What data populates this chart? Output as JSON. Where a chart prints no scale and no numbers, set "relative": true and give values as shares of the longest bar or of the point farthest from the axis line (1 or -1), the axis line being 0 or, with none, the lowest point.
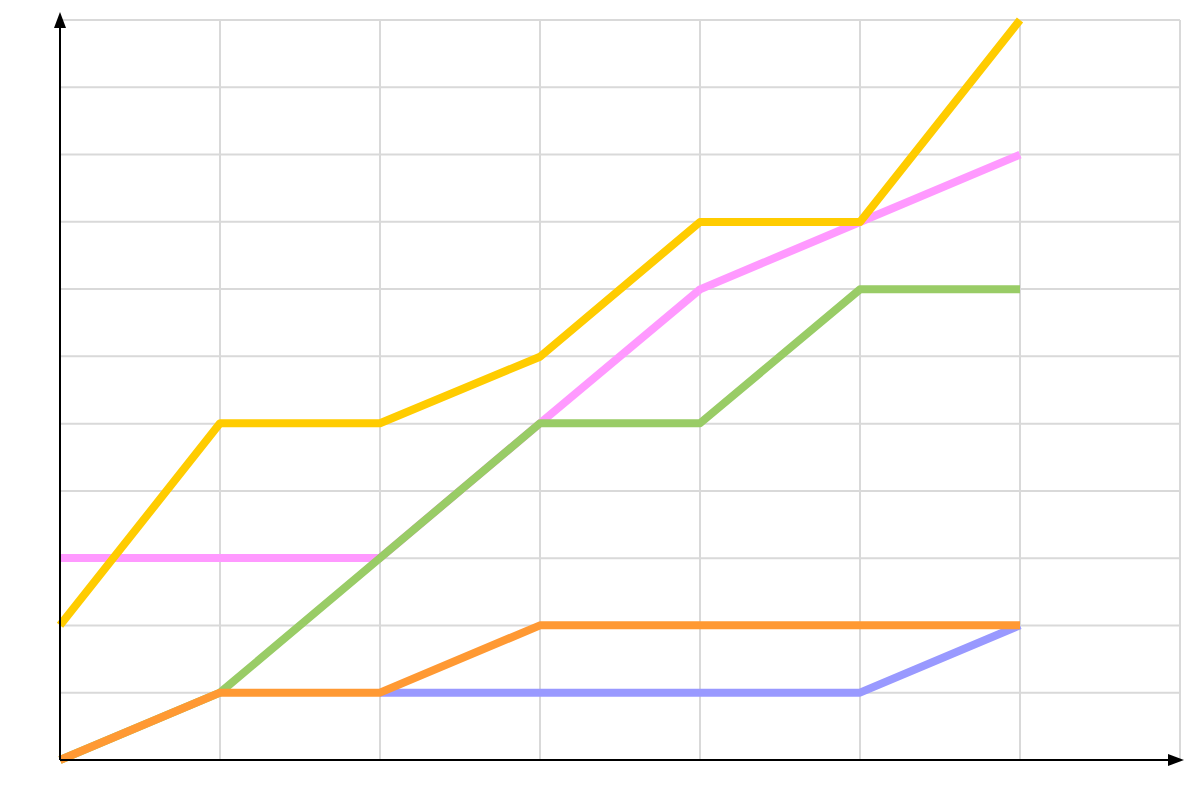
{
  "chart_data": {
    "type": "line",
    "relative": true,
    "grid": true,
    "marker": "none",
    "line_style": "solid",
    "categories": [
      null,
      null,
      null,
      null,
      null,
      null,
      null
    ],
    "series": [
      {
        "color": "#9999ff",
        "values": [
          null,
          null,
          0.091,
          0.091,
          0.091,
          0.091,
          0.182
        ]
      },
      {
        "color": "#ff99ff",
        "values": [
          0.273,
          0.273,
          0.273,
          0.455,
          0.636,
          0.727,
          0.818
        ]
      },
      {
        "color": "#99cc66",
        "values": [
          0,
          0.091,
          0.273,
          0.455,
          0.455,
          0.636,
          0.636
        ]
      },
      {
        "color": "#ff9933",
        "values": [
          0,
          0.091,
          0.091,
          0.182,
          0.182,
          0.182,
          0.182
        ]
      },
      {
        "color": "#ffcc00",
        "values": [
          0.182,
          0.455,
          0.455,
          0.545,
          0.727,
          0.727,
          1
        ]
      }
    ]
  }
}
